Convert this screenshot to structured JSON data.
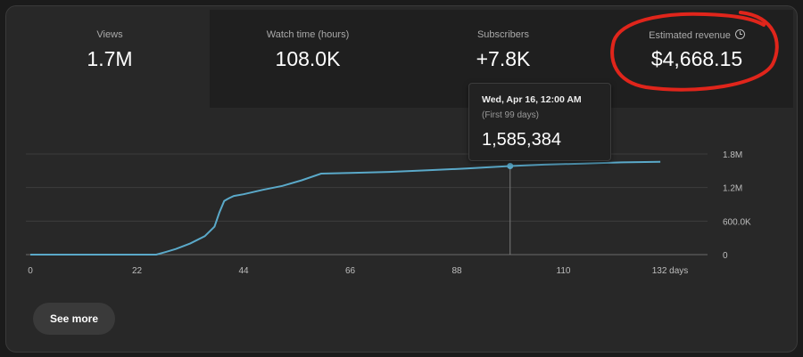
{
  "metrics": [
    {
      "label": "Views",
      "value": "1.7M"
    },
    {
      "label": "Watch time (hours)",
      "value": "108.0K"
    },
    {
      "label": "Subscribers",
      "value": "+7.8K"
    },
    {
      "label": "Estimated revenue",
      "value": "$4,668.15"
    }
  ],
  "tooltip": {
    "date": "Wed, Apr 16, 12:00 AM",
    "subtitle": "(First 99 days)",
    "value": "1,585,384"
  },
  "see_more_label": "See more",
  "colors": {
    "line": "#5aa9c9",
    "highlight": "#e0251b",
    "grid": "#3d3d3d"
  },
  "chart_data": {
    "type": "line",
    "x_ticks": [
      "0",
      "22",
      "44",
      "66",
      "88",
      "110",
      "132 days"
    ],
    "y_ticks": [
      "0",
      "600.0K",
      "1.2M",
      "1.8M"
    ],
    "xlim": [
      0,
      132
    ],
    "ylim": [
      0,
      1800000
    ],
    "grid": true,
    "highlighted_point": {
      "x": 99,
      "y": 1585384
    },
    "series": [
      {
        "x": [
          0,
          10,
          20,
          26,
          28,
          30,
          33,
          36,
          38,
          39,
          40,
          41,
          42,
          44,
          48,
          52,
          56,
          60,
          66,
          74,
          82,
          90,
          99,
          106,
          114,
          122,
          130
        ],
        "y": [
          0,
          0,
          0,
          0,
          50000,
          100000,
          200000,
          330000,
          500000,
          750000,
          960000,
          1010000,
          1050000,
          1080000,
          1160000,
          1230000,
          1330000,
          1450000,
          1460000,
          1480000,
          1510000,
          1540000,
          1585384,
          1610000,
          1630000,
          1650000,
          1660000
        ]
      }
    ]
  }
}
